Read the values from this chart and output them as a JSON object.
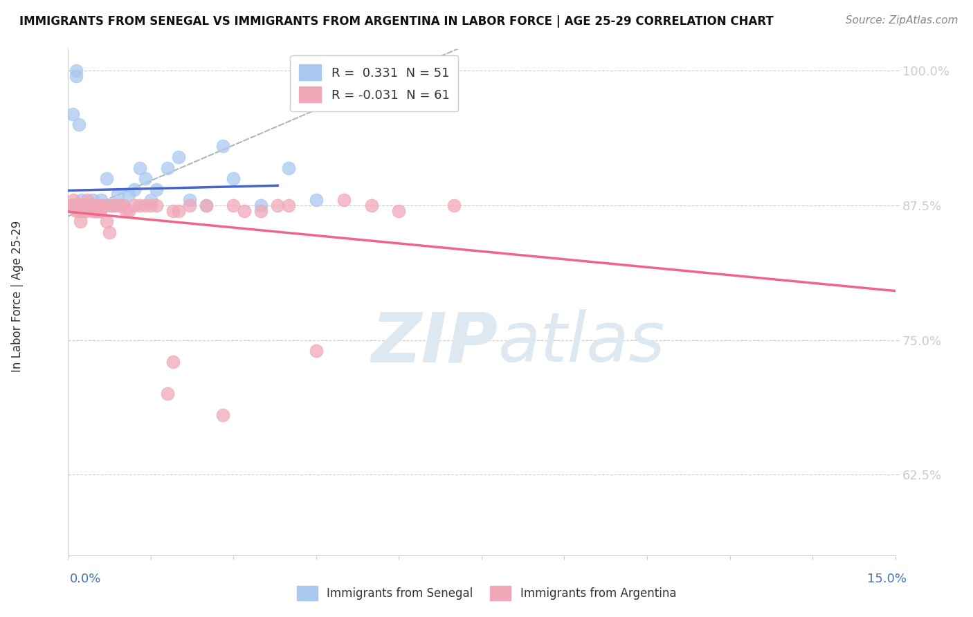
{
  "title": "IMMIGRANTS FROM SENEGAL VS IMMIGRANTS FROM ARGENTINA IN LABOR FORCE | AGE 25-29 CORRELATION CHART",
  "source": "Source: ZipAtlas.com",
  "ylabel_label": "In Labor Force | Age 25-29",
  "legend_label1": "Immigrants from Senegal",
  "legend_label2": "Immigrants from Argentina",
  "R1": 0.331,
  "N1": 51,
  "R2": -0.031,
  "N2": 61,
  "color_senegal": "#a8c8f0",
  "color_argentina": "#f0a8b8",
  "color_senegal_line": "#4466cc",
  "color_argentina_line": "#ee6688",
  "color_diag_line": "#99aabb",
  "watermark_zip": "ZIP",
  "watermark_atlas": "atlas",
  "watermark_color": "#dde8f0",
  "xlim": [
    0.0,
    15.0
  ],
  "ylim": [
    55.0,
    102.0
  ],
  "yticks": [
    62.5,
    75.0,
    87.5,
    100.0
  ],
  "ytick_labels": [
    "62.5%",
    "75.0%",
    "87.5%",
    "100.0%"
  ],
  "senegal_x": [
    0.05,
    0.08,
    0.08,
    0.1,
    0.1,
    0.12,
    0.15,
    0.15,
    0.18,
    0.2,
    0.22,
    0.25,
    0.28,
    0.3,
    0.3,
    0.32,
    0.35,
    0.38,
    0.4,
    0.42,
    0.45,
    0.5,
    0.55,
    0.6,
    0.65,
    0.7,
    0.75,
    0.8,
    0.9,
    0.95,
    1.0,
    1.1,
    1.2,
    1.3,
    1.4,
    1.5,
    1.6,
    1.8,
    2.0,
    2.2,
    2.5,
    2.8,
    3.0,
    3.5,
    4.0,
    4.5,
    0.12,
    0.2,
    0.3,
    0.25,
    0.35
  ],
  "senegal_y": [
    87.5,
    96.0,
    87.5,
    87.5,
    87.5,
    87.5,
    100.0,
    99.5,
    87.5,
    95.0,
    87.5,
    88.0,
    87.5,
    87.5,
    87.5,
    87.5,
    87.5,
    87.5,
    87.5,
    87.5,
    88.0,
    87.5,
    87.5,
    88.0,
    87.5,
    90.0,
    87.5,
    87.5,
    88.5,
    87.5,
    87.5,
    88.5,
    89.0,
    91.0,
    90.0,
    88.0,
    89.0,
    91.0,
    92.0,
    88.0,
    87.5,
    93.0,
    90.0,
    87.5,
    91.0,
    88.0,
    87.5,
    87.5,
    87.5,
    87.5,
    87.5
  ],
  "argentina_x": [
    0.05,
    0.08,
    0.1,
    0.12,
    0.15,
    0.15,
    0.18,
    0.2,
    0.22,
    0.25,
    0.28,
    0.3,
    0.32,
    0.35,
    0.38,
    0.4,
    0.42,
    0.45,
    0.48,
    0.5,
    0.55,
    0.58,
    0.6,
    0.65,
    0.7,
    0.75,
    0.8,
    0.85,
    0.9,
    0.95,
    1.0,
    1.05,
    1.1,
    1.2,
    1.3,
    1.4,
    1.5,
    1.6,
    1.9,
    2.0,
    2.2,
    2.5,
    2.8,
    3.0,
    3.2,
    3.5,
    3.8,
    4.0,
    4.5,
    5.0,
    5.5,
    6.0,
    7.0,
    0.25,
    0.35,
    0.45,
    0.55,
    1.9,
    0.48,
    0.58,
    1.8
  ],
  "argentina_y": [
    87.5,
    87.5,
    88.0,
    87.5,
    87.5,
    87.0,
    87.5,
    87.0,
    86.0,
    87.5,
    87.0,
    87.5,
    87.5,
    88.0,
    87.5,
    87.5,
    87.5,
    87.5,
    87.0,
    87.5,
    87.0,
    87.0,
    87.5,
    87.5,
    86.0,
    85.0,
    87.5,
    87.5,
    87.5,
    87.5,
    87.5,
    87.0,
    87.0,
    87.5,
    87.5,
    87.5,
    87.5,
    87.5,
    73.0,
    87.0,
    87.5,
    87.5,
    68.0,
    87.5,
    87.0,
    87.0,
    87.5,
    87.5,
    74.0,
    88.0,
    87.5,
    87.0,
    87.5,
    87.5,
    87.0,
    87.0,
    87.0,
    87.0,
    87.0,
    87.0,
    70.0
  ]
}
